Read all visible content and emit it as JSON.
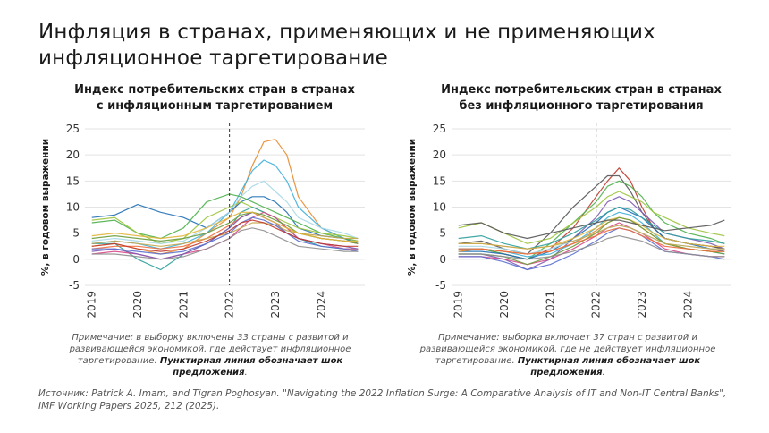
{
  "title_line1": "Инфляция в странах, применяющих и не применяющих",
  "title_line2": "инфляционное таргетирование",
  "source": "Источник: Patrick A. Imam, and Tigran Poghosyan. \"Navigating the 2022 Inflation Surge: A Comparative Analysis of IT and Non-IT Central Banks\", IMF Working Papers 2025, 212 (2025).",
  "charts": [
    {
      "title_line1": "Индекс потребительских стран в странах",
      "title_line2": "с инфляционным таргетированием",
      "note_main": "Примечание: в выборку включены 33 страны с развитой и развивающейся экономикой, где действует инфляционное таргетирование.",
      "note_bold": "Пунктирная линия обозначает шок предложения",
      "note_end": "."
    },
    {
      "title_line1": "Индекс потребительских стран в странах",
      "title_line2": "без инфляционного таргетирования",
      "note_main": "Примечание: выборка включает 37 стран с развитой и развивающейся экономикой, где не действует инфляционное таргетирование.",
      "note_bold": "Пунктирная линия обозначает шок предложения",
      "note_end": "."
    }
  ],
  "chart_data": [
    {
      "type": "line",
      "title": "Индекс потребительских стран в странах с инфляционным таргетированием",
      "ylabel": "%, в годовом выражении",
      "xlabel": "",
      "x": [
        2019.0,
        2019.5,
        2020.0,
        2020.5,
        2021.0,
        2021.5,
        2022.0,
        2022.25,
        2022.5,
        2022.75,
        2023.0,
        2023.25,
        2023.5,
        2024.0,
        2024.5,
        2024.8
      ],
      "x_ticks": [
        "2019",
        "2020",
        "2021",
        "2022",
        "2023",
        "2024"
      ],
      "ylim": [
        -5,
        25
      ],
      "y_ticks": [
        -5,
        0,
        5,
        10,
        15,
        20,
        25
      ],
      "grid": true,
      "shock_line_x": 2022.0,
      "series": [
        {
          "color": "#e8892e",
          "values": [
            2.5,
            3,
            2,
            1,
            2,
            5,
            8,
            12,
            18,
            22.5,
            23,
            20,
            12,
            6,
            4,
            3
          ]
        },
        {
          "color": "#3fb0d9",
          "values": [
            3,
            3.5,
            3,
            2,
            3,
            5,
            9,
            13,
            17,
            19,
            18,
            15,
            10,
            6,
            4,
            3
          ]
        },
        {
          "color": "#1f6fb5",
          "values": [
            8,
            8.5,
            10.5,
            9,
            8,
            6,
            9,
            11,
            12,
            12,
            11,
            9,
            6,
            4.5,
            4,
            3
          ]
        },
        {
          "color": "#4bb04a",
          "values": [
            7,
            7.5,
            5,
            4,
            6,
            11,
            12.5,
            12,
            11,
            10,
            9,
            8,
            7,
            5,
            4,
            3.5
          ]
        },
        {
          "color": "#9cc43c",
          "values": [
            7.5,
            8,
            5,
            3,
            4,
            8,
            10,
            11,
            10,
            9,
            8,
            7,
            6,
            5,
            4.5,
            4
          ]
        },
        {
          "color": "#2c9f9c",
          "values": [
            3,
            3,
            0,
            -2,
            1,
            3,
            6,
            9,
            10,
            9,
            8,
            6,
            4,
            2.5,
            2,
            2
          ]
        },
        {
          "color": "#d84a8a",
          "values": [
            1,
            1.5,
            1,
            0,
            1,
            2,
            4,
            6,
            8,
            9,
            8,
            6,
            4,
            3,
            2,
            2
          ]
        },
        {
          "color": "#ef6a3c",
          "values": [
            2,
            2.5,
            2.5,
            2,
            2.5,
            4,
            6.5,
            8,
            9,
            8,
            7,
            6,
            5,
            4,
            3.5,
            3
          ]
        },
        {
          "color": "#7d5ab5",
          "values": [
            1.5,
            2,
            1,
            0,
            1,
            3,
            6,
            8,
            9,
            8,
            7,
            5,
            4,
            3,
            2.5,
            2
          ]
        },
        {
          "color": "#a7d8e8",
          "values": [
            3.5,
            4,
            3.5,
            3,
            3.5,
            6,
            9,
            12,
            14,
            15,
            13,
            11,
            8,
            6,
            5,
            4
          ]
        },
        {
          "color": "#c7a54a",
          "values": [
            3,
            3.5,
            3,
            2.5,
            3,
            4,
            5,
            6,
            7,
            7,
            6.5,
            5.5,
            5,
            4.5,
            4,
            4
          ]
        },
        {
          "color": "#5a6fd0",
          "values": [
            2,
            2,
            1.5,
            1,
            1.5,
            3,
            5,
            7,
            8,
            7.5,
            6.5,
            5,
            3.5,
            2.5,
            2,
            1.5
          ]
        },
        {
          "color": "#6a9c3a",
          "values": [
            4,
            4.5,
            4,
            3.5,
            4,
            5,
            7,
            8.5,
            9,
            8.5,
            7.5,
            6.5,
            5,
            4,
            3.5,
            3
          ]
        },
        {
          "color": "#e2b63a",
          "values": [
            4.5,
            5,
            4.5,
            4,
            4.5,
            6,
            8,
            9,
            9,
            8,
            7,
            6,
            5,
            4,
            3.5,
            3.5
          ]
        },
        {
          "color": "#c0392b",
          "values": [
            2.5,
            3,
            2,
            1.5,
            2,
            3.5,
            5.5,
            7,
            7.5,
            7,
            6,
            5,
            4,
            3,
            2.5,
            2.5
          ]
        },
        {
          "color": "#8e8e8e",
          "values": [
            1,
            1,
            0.5,
            0,
            0.5,
            2,
            4,
            5.5,
            6,
            5.5,
            4.5,
            3.5,
            2.5,
            2,
            1.5,
            1.5
          ]
        }
      ]
    },
    {
      "type": "line",
      "title": "Индекс потребительских стран в странах без инфляционного таргетирования",
      "ylabel": "%, в годовом выражении",
      "xlabel": "",
      "x": [
        2019.0,
        2019.5,
        2020.0,
        2020.5,
        2021.0,
        2021.5,
        2022.0,
        2022.25,
        2022.5,
        2022.75,
        2023.0,
        2023.25,
        2023.5,
        2024.0,
        2024.5,
        2024.8
      ],
      "x_ticks": [
        "2019",
        "2020",
        "2021",
        "2022",
        "2023",
        "2024"
      ],
      "ylim": [
        -5,
        25
      ],
      "y_ticks": [
        -5,
        0,
        5,
        10,
        15,
        20,
        25
      ],
      "grid": true,
      "shock_line_x": 2022.0,
      "series": [
        {
          "color": "#c0392b",
          "values": [
            2,
            2,
            1,
            0,
            2,
            6,
            12,
            15,
            17.5,
            15,
            10,
            6,
            4,
            3,
            2.5,
            2
          ]
        },
        {
          "color": "#555555",
          "values": [
            3,
            3.5,
            2,
            1,
            5,
            10,
            14,
            16,
            16,
            13,
            9,
            6,
            4,
            3,
            2.5,
            2
          ]
        },
        {
          "color": "#4bb04a",
          "values": [
            2,
            2,
            1,
            0,
            3,
            7,
            11,
            14,
            15,
            14,
            12,
            9,
            7,
            5,
            4,
            3
          ]
        },
        {
          "color": "#9cc43c",
          "values": [
            6,
            7,
            5,
            3,
            4,
            7,
            10,
            12,
            13,
            12,
            11,
            9,
            8,
            6,
            5,
            4.5
          ]
        },
        {
          "color": "#7d5ab5",
          "values": [
            1,
            1,
            0,
            -2,
            0,
            4,
            8,
            11,
            12,
            11,
            9,
            7,
            5,
            4,
            3,
            2
          ]
        },
        {
          "color": "#1f6fb5",
          "values": [
            1.5,
            1.5,
            1,
            0,
            1.5,
            4,
            7,
            9,
            10,
            9,
            8,
            6,
            4,
            3,
            2,
            1.5
          ]
        },
        {
          "color": "#3fb0d9",
          "values": [
            2,
            2,
            1.5,
            0.5,
            1,
            3,
            6,
            8,
            9,
            8.5,
            7,
            5,
            3,
            2,
            1.5,
            1
          ]
        },
        {
          "color": "#e8892e",
          "values": [
            1.5,
            2,
            1.5,
            1,
            1.5,
            3,
            5.5,
            7,
            8,
            7.5,
            6,
            4.5,
            3,
            2,
            1.5,
            1.5
          ]
        },
        {
          "color": "#d84a8a",
          "values": [
            0.5,
            0.5,
            0,
            -1,
            0,
            2,
            4.5,
            6,
            7,
            6,
            5,
            3.5,
            2,
            1,
            0.5,
            0.5
          ]
        },
        {
          "color": "#2c9f9c",
          "values": [
            4,
            4.5,
            3,
            2,
            3,
            5,
            7.5,
            9,
            10,
            9.5,
            8,
            6.5,
            5,
            4,
            3.5,
            3
          ]
        },
        {
          "color": "#e2b63a",
          "values": [
            3,
            3,
            2.5,
            2,
            2.5,
            4,
            6,
            7.5,
            8,
            7.5,
            6.5,
            5,
            4,
            3,
            2.5,
            2.5
          ]
        },
        {
          "color": "#a7d8e8",
          "values": [
            2.5,
            2.5,
            2,
            1,
            2,
            3.5,
            5,
            6,
            6.5,
            6,
            5,
            4,
            3,
            2.5,
            2,
            2
          ]
        },
        {
          "color": "#6a9c3a",
          "values": [
            1,
            1,
            0.5,
            -1,
            0.5,
            2.5,
            5,
            7,
            8,
            7.5,
            6,
            4.5,
            3,
            2,
            1.5,
            1
          ]
        },
        {
          "color": "#5a6fd0",
          "values": [
            0.5,
            0.5,
            -0.5,
            -2,
            -1,
            1,
            3.5,
            5,
            6,
            5.5,
            4.5,
            3,
            1.5,
            1,
            0.5,
            0
          ]
        },
        {
          "color": "#ef6a3c",
          "values": [
            2,
            2,
            1.5,
            1,
            1.5,
            3,
            4.5,
            5.5,
            6,
            5.5,
            4.5,
            3.5,
            2.5,
            2,
            1.5,
            1.5
          ]
        },
        {
          "color": "#8e8e8e",
          "values": [
            1,
            1,
            0.5,
            0,
            0.5,
            1.5,
            3,
            4,
            4.5,
            4,
            3.5,
            2.5,
            1.5,
            1,
            0.5,
            0.5
          ]
        },
        {
          "color": "#c7a54a",
          "values": [
            3,
            3,
            2.5,
            2,
            2.5,
            3.5,
            5,
            6,
            6.5,
            6,
            5,
            4,
            3,
            2.5,
            2,
            2
          ]
        },
        {
          "color": "#555555",
          "values": [
            6.5,
            7,
            5,
            4,
            5,
            6,
            7,
            7.5,
            7.5,
            7,
            6.5,
            6,
            5.5,
            6,
            6.5,
            7.5
          ]
        }
      ]
    }
  ]
}
